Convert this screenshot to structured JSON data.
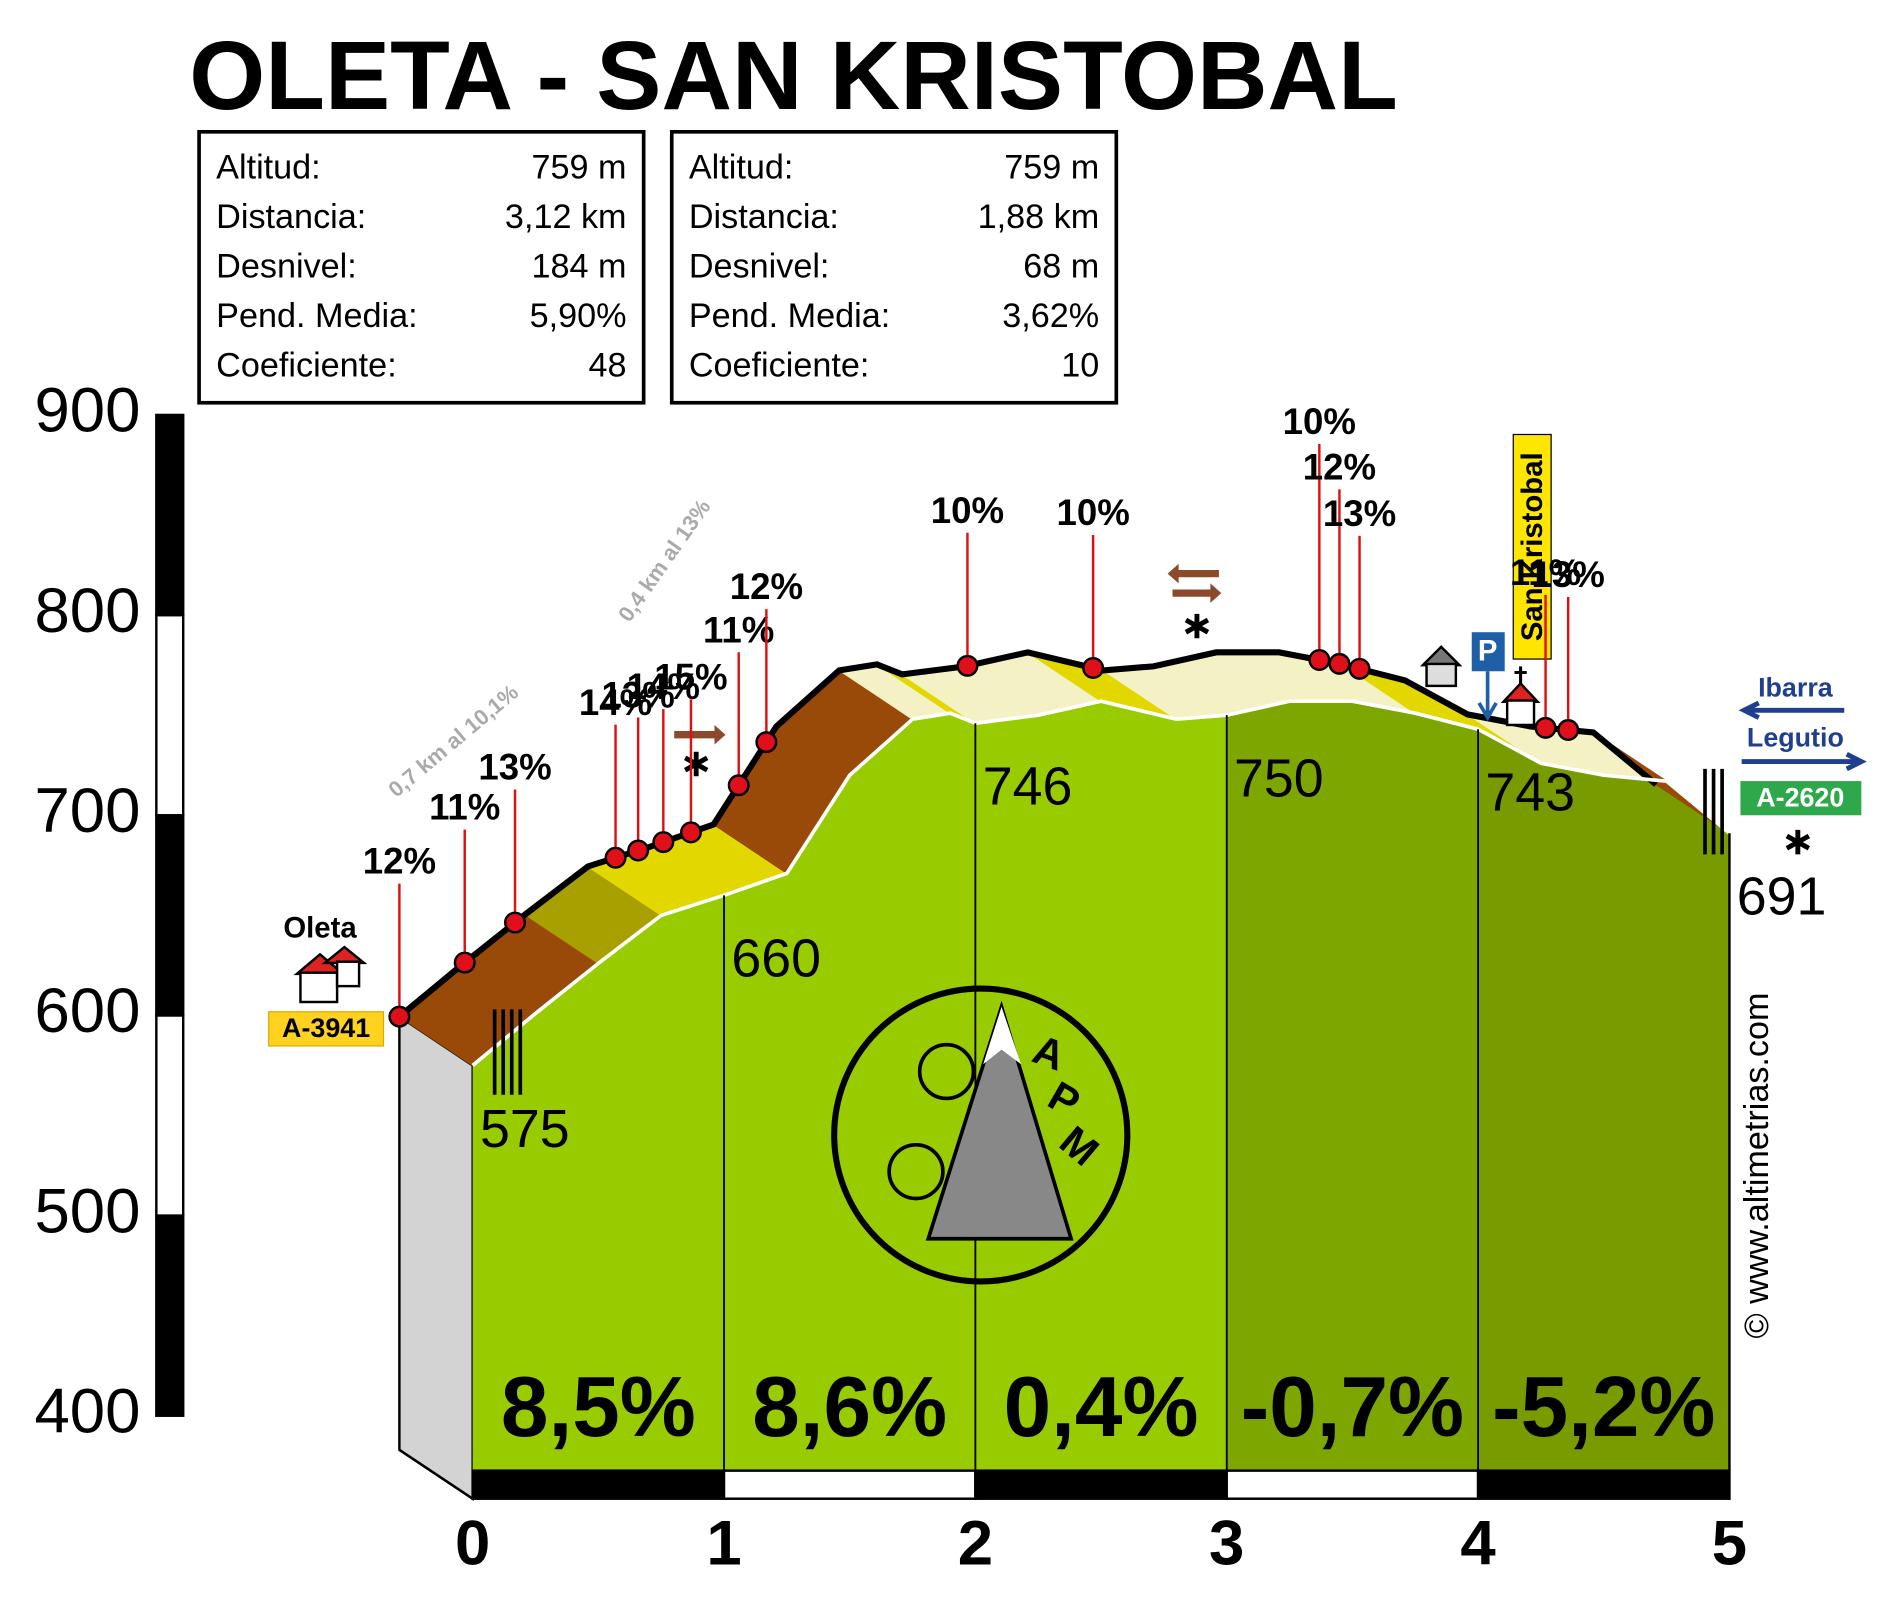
{
  "chart_data": {
    "type": "profile",
    "title": "OLETA - SAN KRISTOBAL",
    "info_boxes": [
      {
        "rows": [
          [
            "Altitud:",
            "759 m"
          ],
          [
            "Distancia:",
            "3,12 km"
          ],
          [
            "Desnivel:",
            "184 m"
          ],
          [
            "Pend. Media:",
            "5,90%"
          ],
          [
            "Coeficiente:",
            "48"
          ]
        ]
      },
      {
        "rows": [
          [
            "Altitud:",
            "759 m"
          ],
          [
            "Distancia:",
            "1,88 km"
          ],
          [
            "Desnivel:",
            "68 m"
          ],
          [
            "Pend. Media:",
            "3,62%"
          ],
          [
            "Coeficiente:",
            "10"
          ]
        ]
      }
    ],
    "x": [
      0,
      0.25,
      0.5,
      0.75,
      1,
      1.25,
      1.5,
      1.75,
      1.9,
      2,
      2.25,
      2.5,
      2.8,
      3,
      3.25,
      3.5,
      3.75,
      4,
      4.25,
      4.5,
      4.75,
      5
    ],
    "values": [
      575,
      601,
      626,
      650,
      660,
      671,
      720,
      748,
      751,
      746,
      750,
      757,
      748,
      750,
      757,
      757,
      751,
      743,
      726,
      720,
      717,
      691
    ],
    "xlim": [
      0,
      5
    ],
    "xticks": [
      0,
      1,
      2,
      3,
      4,
      5
    ],
    "ylim": [
      400,
      900
    ],
    "yticks": [
      400,
      500,
      600,
      700,
      800,
      900
    ],
    "km_altitudes": {
      "x": [
        0,
        1,
        2,
        3,
        4,
        5
      ],
      "values": [
        575,
        660,
        746,
        750,
        743,
        691
      ]
    },
    "segments": {
      "values": [
        8.5,
        8.6,
        0.4,
        -0.7,
        -5.2
      ],
      "value_labels": [
        "8,5%",
        "8,6%",
        "0,4%",
        "-0,7%",
        "-5,2%"
      ],
      "colors": [
        "#99cc00",
        "#99cc00",
        "#99cc00",
        "#7ea600",
        "#789c00"
      ]
    },
    "slopes": {
      "x": [
        0,
        0.26,
        0.46,
        0.86,
        0.95,
        1.05,
        1.16,
        1.35,
        1.46,
        2.26,
        2.76,
        3.66,
        3.74,
        3.82,
        4.56,
        4.65
      ],
      "values": [
        12,
        11,
        13,
        14,
        13,
        14,
        15,
        11,
        12,
        10,
        10,
        10,
        12,
        13,
        11,
        13
      ],
      "value_labels": [
        "12%",
        "11%",
        "13%",
        "14%",
        "13%",
        "14%",
        "15%",
        "11%",
        "12%",
        "10%",
        "10%",
        "10%",
        "12%",
        "13%",
        "11%",
        "13%"
      ]
    },
    "annotations": {
      "start_town": "Oleta",
      "start_road": "A-3941",
      "summit": "San Kristobal",
      "parking": "P",
      "dest1": "Ibarra",
      "dest2": "Legutio",
      "end_road": "A-2620",
      "note1": "0,7 km al 10,1%",
      "note2": "0,4 km al 13%",
      "credit": "© www.altimetrias.com",
      "logo_letters": [
        "A",
        "P",
        "M"
      ]
    }
  }
}
